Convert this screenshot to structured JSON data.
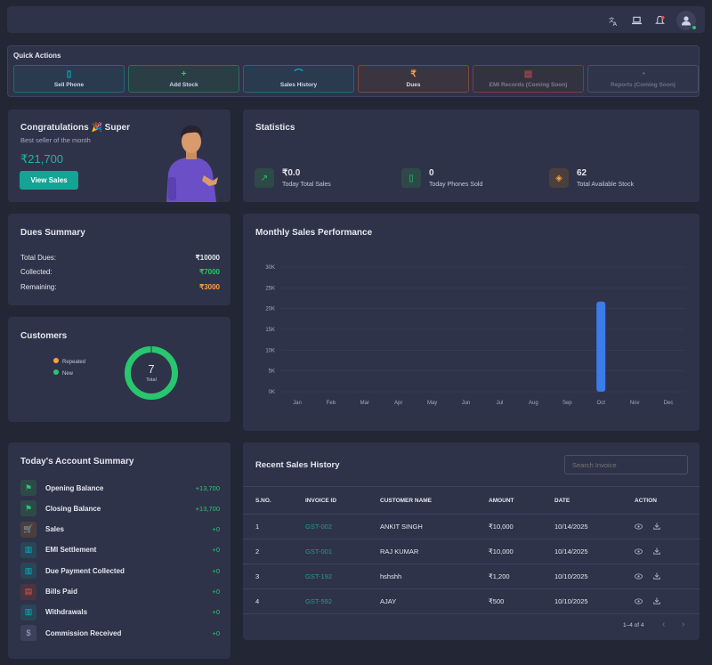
{
  "quick_actions": {
    "title": "Quick Actions",
    "buttons": [
      {
        "label": "Sell Phone",
        "icon": "phone-icon",
        "color": "#00bad1"
      },
      {
        "label": "Add Stock",
        "icon": "plus-icon",
        "color": "#28c76f"
      },
      {
        "label": "Sales History",
        "icon": "chart-icon",
        "color": "#00bad1"
      },
      {
        "label": "Dues",
        "icon": "rupee-icon",
        "color": "#ff9f43"
      },
      {
        "label": "EMI Records (Coming Soon)",
        "icon": "document-icon",
        "color": "#ea5455"
      },
      {
        "label": "Reports (Coming Soon)",
        "icon": "pie-icon",
        "color": "#808390"
      }
    ]
  },
  "congrats": {
    "title": "Congratulations 🎉 Super",
    "subtitle": "Best seller of the month",
    "amount": "₹21,700",
    "button": "View Sales"
  },
  "statistics": {
    "title": "Statistics",
    "items": [
      {
        "value": "₹0.0",
        "label": "Today Total Sales",
        "icon": "trend-up-icon",
        "color": "#28c76f"
      },
      {
        "value": "0",
        "label": "Today Phones Sold",
        "icon": "phone-icon",
        "color": "#28c76f"
      },
      {
        "value": "62",
        "label": "Total Available Stock",
        "icon": "box-icon",
        "color": "#ff9f43"
      }
    ]
  },
  "dues_summary": {
    "title": "Dues Summary",
    "rows": [
      {
        "label": "Total Dues:",
        "value": "₹10000",
        "color": "#e4e6ef"
      },
      {
        "label": "Collected:",
        "value": "₹7000",
        "color": "#28c76f"
      },
      {
        "label": "Remaining:",
        "value": "₹3000",
        "color": "#ff9f43"
      }
    ]
  },
  "customers": {
    "title": "Customers",
    "legend": [
      {
        "label": "Repeated",
        "color": "#ff9f43"
      },
      {
        "label": "New",
        "color": "#28c76f"
      }
    ],
    "total": "7",
    "total_label": "Total"
  },
  "chart_data": {
    "type": "bar",
    "title": "Monthly Sales Performance",
    "categories": [
      "Jan",
      "Feb",
      "Mar",
      "Apr",
      "May",
      "Jun",
      "Jul",
      "Aug",
      "Sep",
      "Oct",
      "Nov",
      "Dec"
    ],
    "values": [
      0,
      0,
      0,
      0,
      0,
      0,
      0,
      0,
      0,
      21700,
      0,
      0
    ],
    "yticks": [
      "0K",
      "5K",
      "10K",
      "15K",
      "20K",
      "25K",
      "30K"
    ],
    "ylim": [
      0,
      30000
    ],
    "color": "#3b7bea",
    "grid": true
  },
  "account_summary": {
    "title": "Today's Account Summary",
    "rows": [
      {
        "label": "Opening Balance",
        "value": "+13,700",
        "icon": "flag-icon",
        "color": "#28c76f"
      },
      {
        "label": "Closing Balance",
        "value": "+13,700",
        "icon": "flag-icon",
        "color": "#28c76f"
      },
      {
        "label": "Sales",
        "value": "+0",
        "icon": "cart-icon",
        "color": "#ff9f43"
      },
      {
        "label": "EMI Settlement",
        "value": "+0",
        "icon": "bank-icon",
        "color": "#00bad1"
      },
      {
        "label": "Due Payment Collected",
        "value": "+0",
        "icon": "bank-icon",
        "color": "#00bad1"
      },
      {
        "label": "Bills Paid",
        "value": "+0",
        "icon": "bill-icon",
        "color": "#ea5455"
      },
      {
        "label": "Withdrawals",
        "value": "+0",
        "icon": "bank-icon",
        "color": "#00bad1"
      },
      {
        "label": "Commission Received",
        "value": "+0",
        "icon": "coin-icon",
        "color": "#a3a8c4"
      }
    ]
  },
  "recent_sales": {
    "title": "Recent Sales History",
    "search_placeholder": "Search Invoice",
    "columns": [
      "S.NO.",
      "INVOICE ID",
      "CUSTOMER NAME",
      "AMOUNT",
      "DATE",
      "ACTION"
    ],
    "rows": [
      {
        "sno": "1",
        "invoice": "GST-002",
        "customer": "ANKIT SINGH",
        "amount": "₹10,000",
        "date": "10/14/2025"
      },
      {
        "sno": "2",
        "invoice": "GST-001",
        "customer": "RAJ KUMAR",
        "amount": "₹10,000",
        "date": "10/14/2025"
      },
      {
        "sno": "3",
        "invoice": "GST-192",
        "customer": "hshshh",
        "amount": "₹1,200",
        "date": "10/10/2025"
      },
      {
        "sno": "4",
        "invoice": "GST-592",
        "customer": "AJAY",
        "amount": "₹500",
        "date": "10/10/2025"
      }
    ],
    "pagination": "1–4 of 4"
  }
}
